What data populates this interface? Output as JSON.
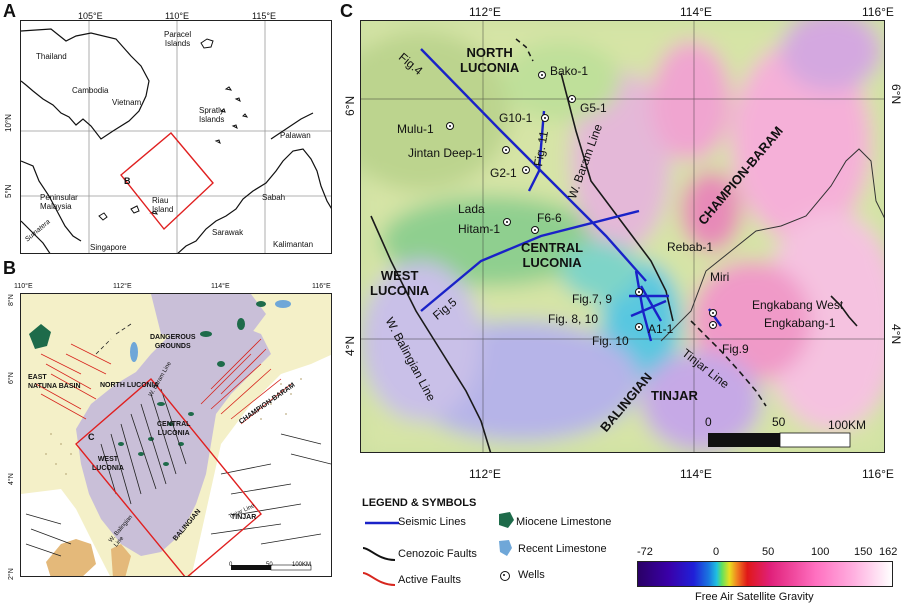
{
  "panels": {
    "a": "A",
    "b": "B",
    "c": "C"
  },
  "map_a": {
    "lon_ticks": [
      "105°E",
      "110°E",
      "115°E"
    ],
    "lat_ticks": [
      "10°N",
      "5°N"
    ],
    "places": {
      "thailand": "Thailand",
      "cambodia": "Cambodia",
      "vietnam": "Vietnam",
      "paracel": "Paracel\nIslands",
      "spratly": "Spratly\nIslands",
      "palawan": "Palawan",
      "sabah": "Sabah",
      "sarawak": "Sarawak",
      "kalimantan": "Kalimantan",
      "riau": "Riau\nIsland",
      "singapore": "Singapore",
      "peninsular": "Peninsular\nMalaysia",
      "sumatera": "Sumatera",
      "box": "B"
    }
  },
  "map_b": {
    "lon_ticks": [
      "110°E",
      "112°E",
      "114°E",
      "116°E"
    ],
    "lat_ticks": [
      "8°N",
      "6°N",
      "4°N",
      "2°N"
    ],
    "labels": {
      "dangerous": "DANGEROUS\nGROUNDS",
      "east_natuna": "EAST\nNATUNA BASIN",
      "north_luconia": "NORTH LUCONIA",
      "champion": "CHAMPION-BARAM",
      "west_luconia": "WEST\nLUCONIA",
      "central_luconia": "CENTRAL\nLUCONIA",
      "balingian": "BALINGIAN",
      "tinjar": "TINJAR",
      "box": "C",
      "w_baram": "W. Baram Line",
      "tinjar_line": "Tinjar Line",
      "w_balingian": "W. Balingian\nLine"
    },
    "scale": [
      "0",
      "50",
      "100KM"
    ]
  },
  "map_c": {
    "lon_ticks": [
      "112°E",
      "114°E",
      "116°E"
    ],
    "lat_ticks": [
      "6°N",
      "4°N"
    ],
    "wells": [
      "Bako-1",
      "G5-1",
      "G10-1",
      "Mulu-1",
      "Jintan Deep-1",
      "G2-1",
      "F6-6",
      "Lada\nHitam-1",
      "Rebab-1",
      "A1-1",
      "Engkabang West",
      "Engkabang-1",
      "Miri"
    ],
    "regions": {
      "north_luconia": "NORTH\nLUCONIA",
      "champion": "CHAMPION-BARAM",
      "central_luconia": "CENTRAL\nLUCONIA",
      "west_luconia": "WEST\nLUCONIA",
      "balingian": "BALINGIAN",
      "tinjar": "TINJAR"
    },
    "lines": {
      "w_baram": "W. Baram Line",
      "w_balingian": "W. Balingian Line",
      "tinjar": "Tinjar Line"
    },
    "figs": {
      "fig4": "Fig.4",
      "fig11": "Fig. 11",
      "fig5": "Fig.5",
      "fig79": "Fig.7, 9",
      "fig810": "Fig. 8, 10",
      "fig10": "Fig. 10",
      "fig9": "Fig.9"
    },
    "scale": [
      "0",
      "50",
      "100KM"
    ]
  },
  "legend": {
    "title": "LEGEND & SYMBOLS",
    "items": {
      "seismic": "Seismic Lines",
      "cenozoic": "Cenozoic Faults",
      "active": "Active Faults",
      "miocene": "Miocene Limestone",
      "recent": "Recent Limestone",
      "wells": "Wells"
    },
    "colors": {
      "seismic": "#1a22c8",
      "cenozoic": "#111111",
      "active": "#d7261e",
      "miocene": "#1e6b4a",
      "recent": "#6fa7d8"
    }
  },
  "colorbar": {
    "ticks": [
      "-72",
      "0",
      "50",
      "100",
      "150",
      "162"
    ],
    "title": "Free Air Satellite Gravity"
  }
}
